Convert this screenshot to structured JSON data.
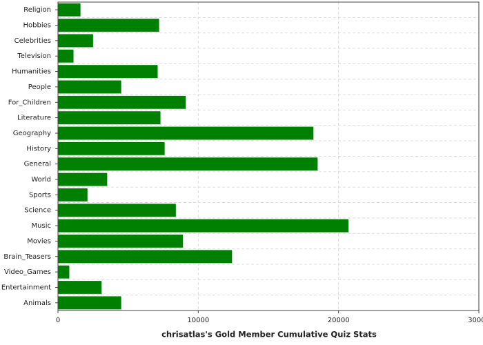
{
  "chart_data": {
    "type": "barh",
    "title": "chrisatlas's Gold Member Cumulative Quiz Stats",
    "categories": [
      "Religion",
      "Hobbies",
      "Celebrities",
      "Television",
      "Humanities",
      "People",
      "For_Children",
      "Literature",
      "Geography",
      "History",
      "General",
      "World",
      "Sports",
      "Science",
      "Music",
      "Movies",
      "Brain_Teasers",
      "Video_Games",
      "Entertainment",
      "Animals"
    ],
    "values": [
      1600,
      7200,
      2500,
      1100,
      7100,
      4500,
      9100,
      7300,
      18200,
      7600,
      18500,
      3500,
      2100,
      8400,
      20700,
      8900,
      12400,
      800,
      3100,
      4500
    ],
    "color": "#008000",
    "xlim": [
      0,
      30000
    ],
    "xticks": [
      0,
      10000,
      20000,
      30000
    ],
    "grid": true
  }
}
